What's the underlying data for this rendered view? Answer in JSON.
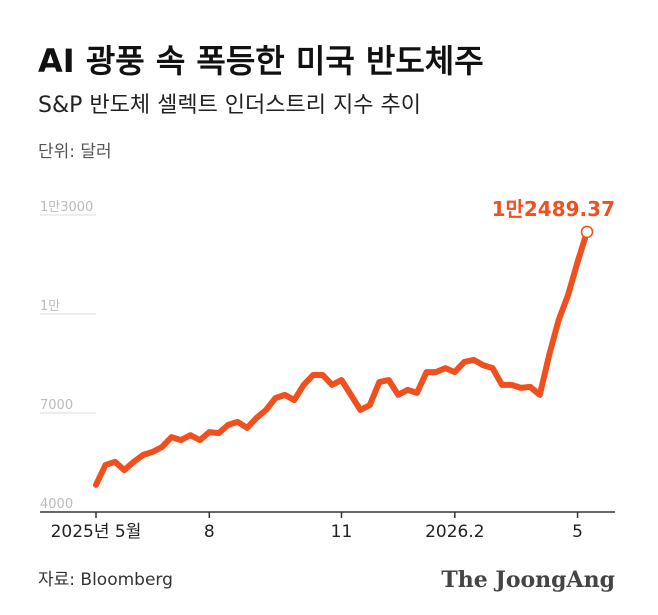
{
  "chart_data": {
    "type": "line",
    "title": "AI 광풍 속 폭등한 미국 반도체주",
    "subtitle": "S&P 반도체 셀렉트 인더스트리 지수 추이",
    "unit": "단위: 달러",
    "source": "자료: Bloomberg",
    "brand": "The JoongAng",
    "categories": [
      "2025년 5월",
      null,
      null,
      null,
      null,
      null,
      null,
      null,
      null,
      null,
      null,
      null,
      "8",
      null,
      null,
      null,
      null,
      null,
      null,
      null,
      null,
      null,
      null,
      null,
      null,
      null,
      "11",
      null,
      null,
      null,
      null,
      null,
      null,
      null,
      null,
      null,
      null,
      null,
      "2026.2",
      null,
      null,
      null,
      null,
      null,
      null,
      null,
      null,
      null,
      null,
      null,
      null,
      "5",
      null
    ],
    "series": [
      {
        "name": "S&P 반도체 셀렉트 인더스트리 지수",
        "color": "#f04f1e",
        "values": [
          4820,
          5420,
          5520,
          5270,
          5520,
          5730,
          5820,
          5970,
          6270,
          6180,
          6330,
          6180,
          6420,
          6390,
          6640,
          6730,
          6550,
          6850,
          7090,
          7450,
          7550,
          7390,
          7850,
          8150,
          8150,
          7850,
          8000,
          7550,
          7090,
          7240,
          7940,
          8000,
          7550,
          7700,
          7610,
          8240,
          8240,
          8360,
          8240,
          8550,
          8610,
          8450,
          8360,
          7850,
          7850,
          7760,
          7790,
          7550,
          8760,
          9820,
          10580,
          11580,
          12489.37
        ],
        "value_labels": [
          null,
          null,
          null,
          null,
          null,
          null,
          null,
          null,
          null,
          null,
          null,
          null,
          null,
          null,
          null,
          null,
          null,
          null,
          null,
          null,
          null,
          null,
          null,
          null,
          null,
          null,
          null,
          null,
          null,
          null,
          null,
          null,
          null,
          null,
          null,
          null,
          null,
          null,
          null,
          null,
          null,
          null,
          null,
          null,
          null,
          null,
          null,
          null,
          null,
          null,
          null,
          null,
          "1만2489.37"
        ]
      }
    ],
    "ylim": [
      4000,
      13000
    ],
    "yticks": [
      4000,
      7000,
      {
        "value": 10000,
        "label": "1만"
      },
      {
        "value": 13000,
        "label": "1만3000"
      }
    ],
    "grid": true
  }
}
